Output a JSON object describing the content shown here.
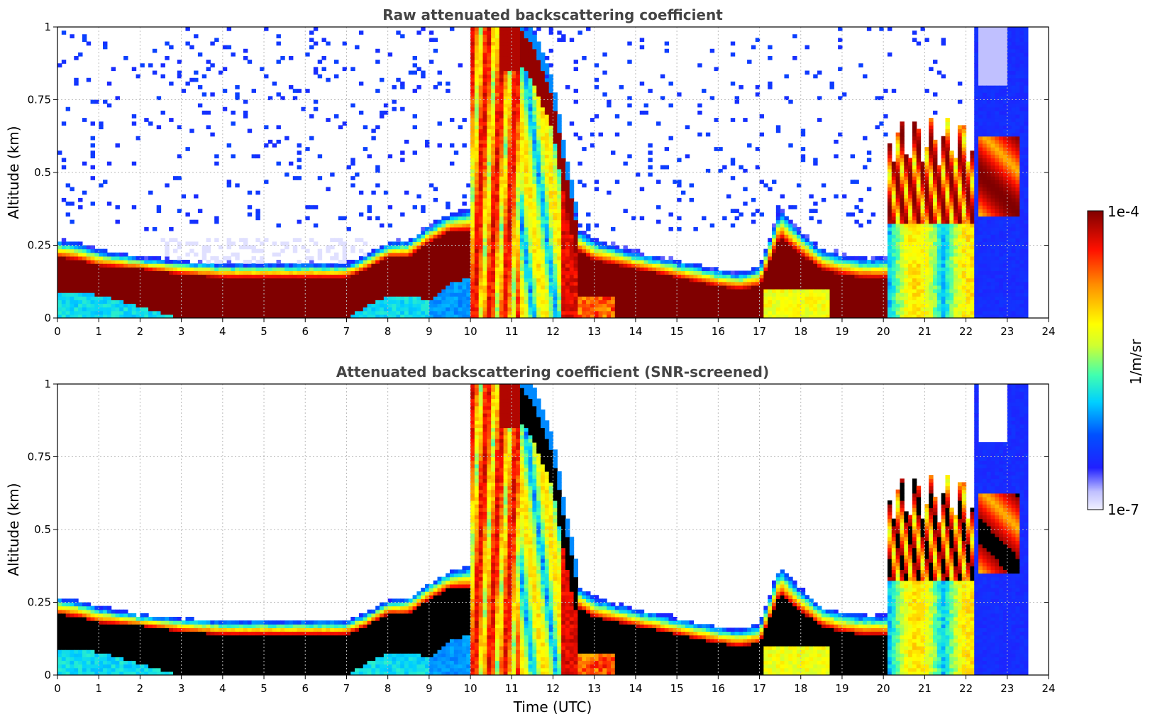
{
  "chart_data": [
    {
      "type": "heatmap",
      "title": "Raw attenuated backscattering coefficient",
      "xlabel": "",
      "ylabel": "Altitude (km)",
      "xlim": [
        0,
        24
      ],
      "ylim": [
        0,
        1
      ],
      "xticks": [
        "0",
        "1",
        "2",
        "3",
        "4",
        "5",
        "6",
        "7",
        "8",
        "9",
        "10",
        "11",
        "12",
        "13",
        "14",
        "15",
        "16",
        "17",
        "18",
        "19",
        "20",
        "21",
        "22",
        "23",
        "24"
      ],
      "yticks": [
        "0",
        "0.25",
        "0.5",
        "0.75",
        "1"
      ],
      "grid": true,
      "layers": [
        {
          "name": "noise speckle",
          "start": 0.0,
          "end": 20.0,
          "base": 0.35,
          "top": 1.0,
          "level": 0.22
        },
        {
          "name": "noise speckle late",
          "start": 20.0,
          "end": 23.5,
          "base": 0.8,
          "top": 1.0,
          "level": 0.2
        },
        {
          "name": "aerosol layer top edge",
          "times": [
            0,
            0.5,
            1,
            2,
            3,
            4,
            5,
            6,
            7,
            7.5,
            8,
            8.5,
            9,
            9.5,
            10
          ],
          "heights": [
            0.27,
            0.26,
            0.24,
            0.21,
            0.2,
            0.19,
            0.19,
            0.19,
            0.19,
            0.22,
            0.26,
            0.27,
            0.32,
            0.36,
            0.38
          ]
        },
        {
          "name": "aerosol layer core",
          "times": [
            0,
            0.5,
            1,
            2,
            3,
            4,
            5,
            6,
            7,
            7.5,
            8,
            8.5,
            9,
            9.5,
            10
          ],
          "lower": [
            0.09,
            0.09,
            0.08,
            0.04,
            0.0,
            0.0,
            0.0,
            0.0,
            0.0,
            0.04,
            0.08,
            0.08,
            0.06,
            0.12,
            0.14
          ],
          "upper": [
            0.21,
            0.2,
            0.18,
            0.17,
            0.15,
            0.14,
            0.14,
            0.14,
            0.14,
            0.17,
            0.21,
            0.21,
            0.26,
            0.3,
            0.3
          ]
        },
        {
          "name": "cloud",
          "start": 10.0,
          "end": 11.2,
          "base": 0.0,
          "top": 1.0,
          "level": 0.6
        },
        {
          "name": "descending cloud band",
          "times": [
            11.0,
            11.5,
            12.0,
            12.3,
            12.6
          ],
          "heights": [
            0.97,
            0.88,
            0.7,
            0.45,
            0.25
          ]
        },
        {
          "name": "boundary layer top edge",
          "times": [
            12.5,
            13,
            14,
            15,
            16,
            16.5,
            17,
            17.5,
            18,
            18.5,
            19,
            19.5,
            20
          ],
          "heights": [
            0.32,
            0.27,
            0.23,
            0.2,
            0.17,
            0.16,
            0.18,
            0.38,
            0.3,
            0.24,
            0.22,
            0.21,
            0.21
          ]
        },
        {
          "name": "boundary layer core",
          "times": [
            12.5,
            13,
            14,
            15,
            16,
            16.5,
            17,
            17.5,
            18,
            18.5,
            19,
            19.5,
            20
          ],
          "upper": [
            0.24,
            0.2,
            0.17,
            0.14,
            0.11,
            0.1,
            0.11,
            0.28,
            0.22,
            0.17,
            0.15,
            0.14,
            0.14
          ]
        },
        {
          "name": "broken clouds",
          "start": 20.2,
          "end": 22.3,
          "base": 0.0,
          "top": 0.65,
          "level": 0.7
        },
        {
          "name": "late cloud",
          "start": 22.3,
          "end": 23.5,
          "base": 0.35,
          "top": 0.65,
          "level": 0.6
        },
        {
          "name": "background",
          "start": 22.2,
          "end": 23.5,
          "base": 0.0,
          "top": 1.0,
          "level": 0.15
        }
      ]
    },
    {
      "type": "heatmap",
      "title": "Attenuated backscattering coefficient (SNR-screened)",
      "xlabel": "Time (UTC)",
      "ylabel": "Altitude (km)",
      "xlim": [
        0,
        24
      ],
      "ylim": [
        0,
        1
      ],
      "xticks": [
        "0",
        "1",
        "2",
        "3",
        "4",
        "5",
        "6",
        "7",
        "8",
        "9",
        "10",
        "11",
        "12",
        "13",
        "14",
        "15",
        "16",
        "17",
        "18",
        "19",
        "20",
        "21",
        "22",
        "23",
        "24"
      ],
      "yticks": [
        "0",
        "0.25",
        "0.5",
        "0.75",
        "1"
      ],
      "grid": true,
      "saturation_color": "#000000",
      "layers": [
        {
          "name": "aerosol layer (screened)",
          "start": 0.0,
          "end": 10.0,
          "level": 0.65
        },
        {
          "name": "cloud (screened)",
          "start": 10.0,
          "end": 12.6,
          "level": 0.7
        },
        {
          "name": "boundary layer (screened)",
          "start": 12.5,
          "end": 20.0,
          "level": 0.7
        },
        {
          "name": "broken clouds (screened)",
          "start": 20.2,
          "end": 23.5,
          "level": 0.7
        }
      ]
    }
  ],
  "colorbar": {
    "label": "1/m/sr",
    "max_label": "1e-4",
    "min_label": "1e-7",
    "colormap": [
      "#f0f0ff",
      "#c8c8ff",
      "#8080ff",
      "#0000ff",
      "#0080ff",
      "#00ffff",
      "#80ff80",
      "#ffff00",
      "#ff8000",
      "#ff0000",
      "#800000"
    ]
  }
}
